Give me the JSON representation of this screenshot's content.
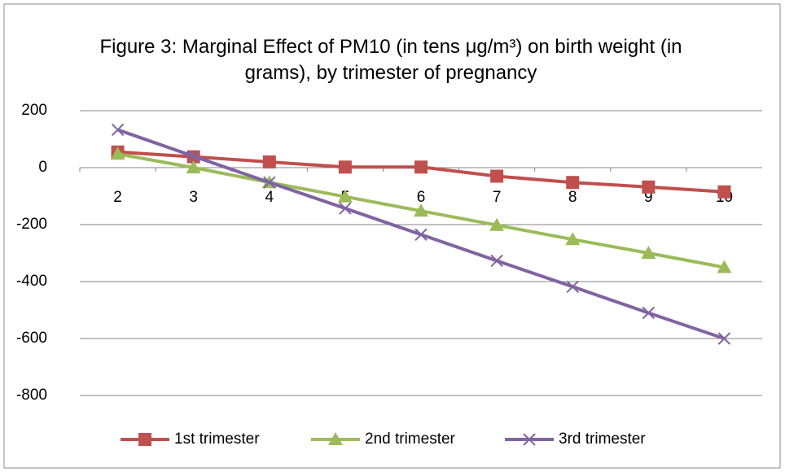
{
  "chart_data": {
    "type": "line",
    "title": "Figure 3: Marginal Effect of PM10 (in tens μg/m³) on birth weight (in grams), by trimester of pregnancy",
    "categories": [
      "2",
      "3",
      "4",
      "5",
      "6",
      "7",
      "8",
      "9",
      "10"
    ],
    "series": [
      {
        "name": "1st trimester",
        "color": "#c0504d",
        "marker": "square",
        "values": [
          55,
          38,
          20,
          2,
          2,
          -30,
          -52,
          -68,
          -85
        ]
      },
      {
        "name": "2nd trimester",
        "color": "#9bbb59",
        "marker": "triangle",
        "values": [
          48,
          0,
          -52,
          -102,
          -152,
          -202,
          -252,
          -300,
          -350
        ]
      },
      {
        "name": "3rd trimester",
        "color": "#8064a2",
        "marker": "x",
        "values": [
          133,
          40,
          -52,
          -143,
          -235,
          -327,
          -418,
          -510,
          -600
        ]
      }
    ],
    "ylim": [
      -800,
      200
    ],
    "yticks": [
      -800,
      -600,
      -400,
      -200,
      0,
      200
    ],
    "grid": true,
    "legend": "bottom"
  }
}
